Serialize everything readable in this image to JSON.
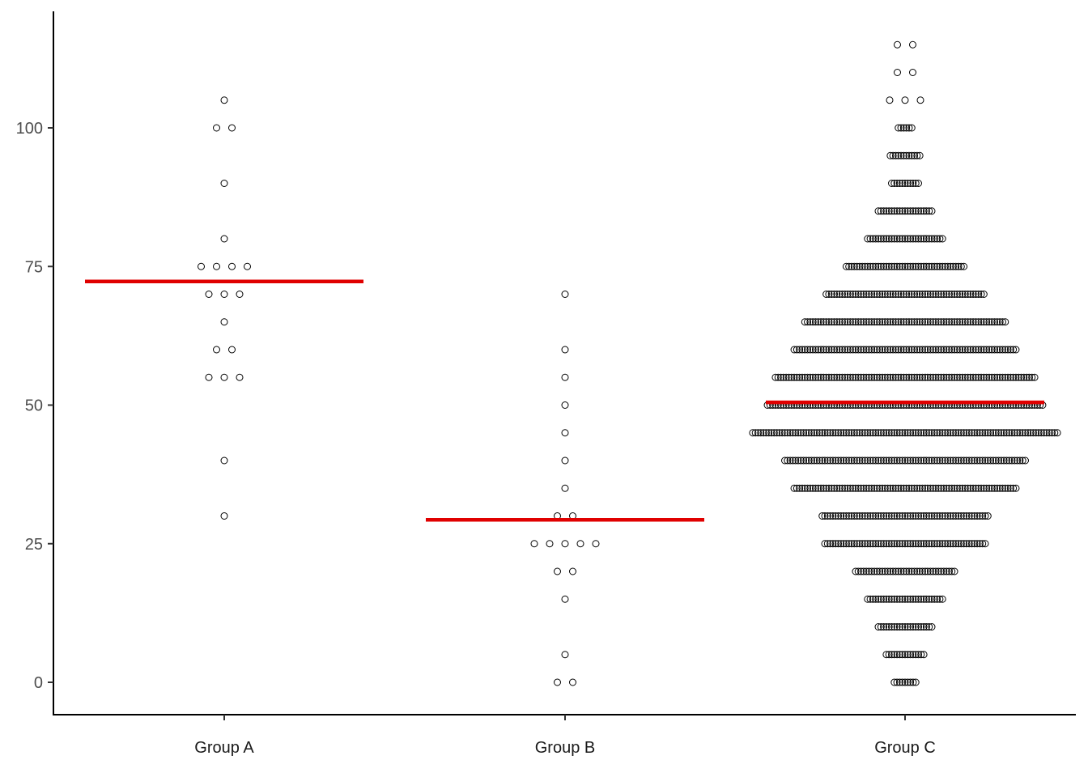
{
  "chart_data": {
    "type": "scatter",
    "subtype": "dotplot-with-mean",
    "title": "",
    "xlabel": "",
    "ylabel": "",
    "ylim": [
      -5,
      120
    ],
    "y_ticks": [
      0,
      25,
      50,
      75,
      100
    ],
    "y_tick_labels": [
      "0",
      "25",
      "50",
      "75",
      "100"
    ],
    "categories": [
      "Group A",
      "Group B",
      "Group C"
    ],
    "grid": false,
    "legend": "none",
    "colors": {
      "points": "#000000",
      "mean_line": "#e00000"
    },
    "groups": [
      {
        "name": "Group A",
        "mean": 72.3,
        "bins": [
          {
            "y": 105,
            "count": 1
          },
          {
            "y": 100,
            "count": 2
          },
          {
            "y": 90,
            "count": 1
          },
          {
            "y": 80,
            "count": 1
          },
          {
            "y": 75,
            "count": 4
          },
          {
            "y": 70,
            "count": 3
          },
          {
            "y": 65,
            "count": 1
          },
          {
            "y": 60,
            "count": 2
          },
          {
            "y": 55,
            "count": 3
          },
          {
            "y": 40,
            "count": 1
          },
          {
            "y": 30,
            "count": 1
          }
        ]
      },
      {
        "name": "Group B",
        "mean": 29.3,
        "bins": [
          {
            "y": 70,
            "count": 1
          },
          {
            "y": 60,
            "count": 1
          },
          {
            "y": 55,
            "count": 1
          },
          {
            "y": 50,
            "count": 1
          },
          {
            "y": 45,
            "count": 1
          },
          {
            "y": 40,
            "count": 1
          },
          {
            "y": 35,
            "count": 1
          },
          {
            "y": 30,
            "count": 2
          },
          {
            "y": 25,
            "count": 5
          },
          {
            "y": 20,
            "count": 2
          },
          {
            "y": 15,
            "count": 1
          },
          {
            "y": 5,
            "count": 1
          },
          {
            "y": 0,
            "count": 2
          }
        ]
      },
      {
        "name": "Group C",
        "mean": 50.5,
        "bins": [
          {
            "y": 115,
            "count": 2
          },
          {
            "y": 110,
            "count": 2
          },
          {
            "y": 105,
            "count": 3
          },
          {
            "y": 100,
            "count": 6
          },
          {
            "y": 95,
            "count": 12
          },
          {
            "y": 90,
            "count": 11
          },
          {
            "y": 85,
            "count": 21
          },
          {
            "y": 80,
            "count": 29
          },
          {
            "y": 75,
            "count": 45
          },
          {
            "y": 70,
            "count": 60
          },
          {
            "y": 65,
            "count": 76
          },
          {
            "y": 60,
            "count": 84
          },
          {
            "y": 55,
            "count": 98
          },
          {
            "y": 50,
            "count": 104
          },
          {
            "y": 45,
            "count": 115
          },
          {
            "y": 40,
            "count": 91
          },
          {
            "y": 35,
            "count": 84
          },
          {
            "y": 30,
            "count": 63
          },
          {
            "y": 25,
            "count": 61
          },
          {
            "y": 20,
            "count": 38
          },
          {
            "y": 15,
            "count": 29
          },
          {
            "y": 10,
            "count": 21
          },
          {
            "y": 5,
            "count": 15
          },
          {
            "y": 0,
            "count": 9
          }
        ]
      }
    ]
  }
}
